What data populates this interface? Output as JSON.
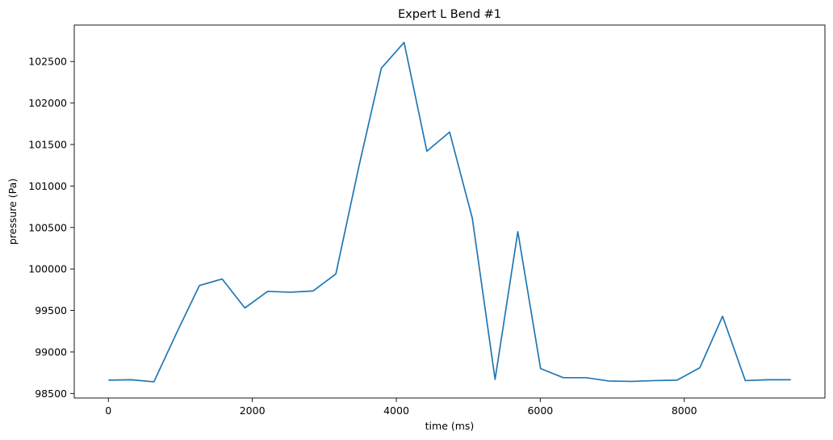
{
  "chart_data": {
    "type": "line",
    "title": "Expert L Bend #1",
    "xlabel": "time (ms)",
    "ylabel": "pressure (Pa)",
    "xlim": [
      -474,
      9954
    ],
    "ylim": [
      98445,
      102940
    ],
    "xticks": [
      0,
      2000,
      4000,
      6000,
      8000
    ],
    "yticks": [
      98500,
      99000,
      99500,
      100000,
      100500,
      101000,
      101500,
      102000,
      102500
    ],
    "grid": false,
    "series": [
      {
        "color": "#1f77b4",
        "x": [
          0,
          316,
          632,
          948,
          1264,
          1580,
          1896,
          2212,
          2528,
          2844,
          3160,
          3476,
          3792,
          4108,
          4424,
          4740,
          5056,
          5372,
          5688,
          6004,
          6320,
          6636,
          6952,
          7268,
          7584,
          7900,
          8216,
          8532,
          8848,
          9164,
          9480
        ],
        "y": [
          98660,
          98665,
          98640,
          99230,
          99800,
          99880,
          99530,
          99730,
          99720,
          99735,
          99940,
          101220,
          102420,
          102730,
          101420,
          101650,
          100610,
          98670,
          100450,
          98800,
          98690,
          98690,
          98650,
          98645,
          98655,
          98660,
          98810,
          99430,
          98655,
          98665,
          98665
        ]
      }
    ]
  }
}
